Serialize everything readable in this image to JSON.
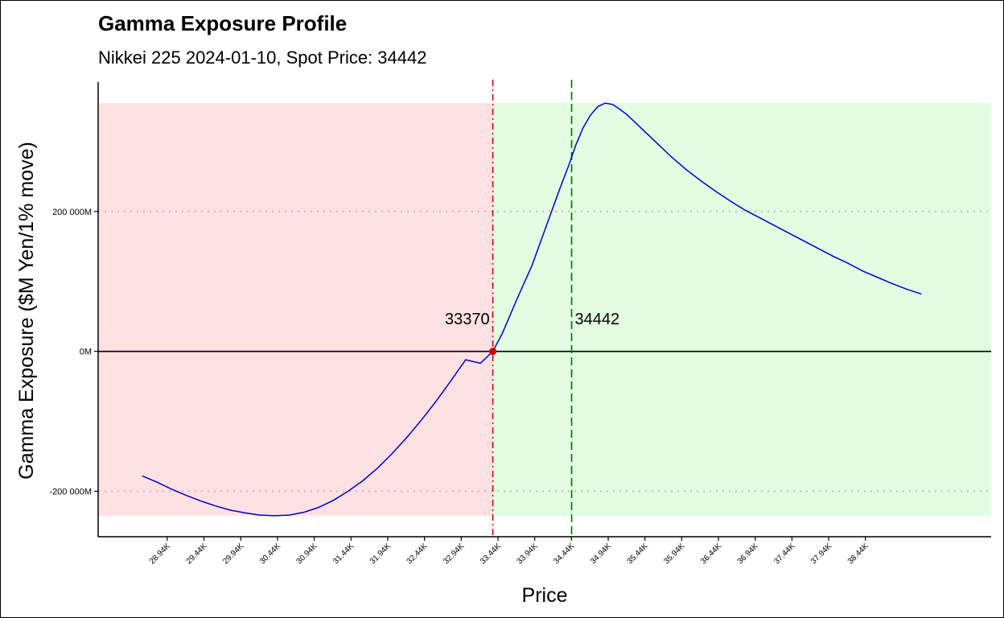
{
  "chart_data": {
    "type": "line",
    "title": "Gamma Exposure Profile",
    "subtitle": "Nikkei 225 2024-01-10, Spot Price: 34442",
    "xlabel": "Price",
    "ylabel": "Gamma Exposure ($M Yen/1% move)",
    "xlim": [
      28000,
      40150
    ],
    "ylim": [
      -265000,
      385000
    ],
    "grid": false,
    "x_ticks": [
      28940,
      29440,
      29940,
      30440,
      30940,
      31440,
      31940,
      32440,
      32940,
      33440,
      33940,
      34440,
      34940,
      35440,
      35940,
      36440,
      36940,
      37440,
      37940,
      38440
    ],
    "x_tick_labels": [
      "28.94K",
      "29.44K",
      "29.94K",
      "30.44K",
      "30.94K",
      "31.44K",
      "31.94K",
      "32.44K",
      "32.94K",
      "33.44K",
      "33.94K",
      "34.44K",
      "34.94K",
      "35.44K",
      "35.94K",
      "36.44K",
      "36.94K",
      "37.44K",
      "37.94K",
      "38.44K"
    ],
    "y_ticks": [
      -200000,
      0,
      200000
    ],
    "y_tick_labels": [
      "-200 000M",
      "0M",
      "200 000M"
    ],
    "regions": [
      {
        "x_from": 28000,
        "x_to": 33370,
        "y_from": -235000,
        "y_to": 355000,
        "color": "#ffe1e4"
      },
      {
        "x_from": 33370,
        "x_to": 40150,
        "y_from": -235000,
        "y_to": 355000,
        "color": "#e2fde2"
      }
    ],
    "reference_lines": [
      {
        "axis": "y",
        "value": 200000,
        "style": "dotted",
        "color": "#bbbbbb"
      },
      {
        "axis": "y",
        "value": -200000,
        "style": "dotted",
        "color": "#bbbbbb"
      },
      {
        "axis": "y",
        "value": 0,
        "style": "solid",
        "color": "#000000"
      },
      {
        "axis": "x",
        "value": 33370,
        "style": "dashdot",
        "color": "#e00000"
      },
      {
        "axis": "x",
        "value": 34442,
        "style": "dashed",
        "color": "#007000"
      }
    ],
    "annotations": [
      {
        "text": "33370",
        "x": 33370,
        "y": 47000,
        "anchor": "end"
      },
      {
        "text": "34442",
        "x": 34442,
        "y": 47000,
        "anchor": "start"
      }
    ],
    "marker": {
      "x": 33370,
      "y": 0,
      "color": "#cc0000"
    },
    "series": [
      {
        "color": "#0000cc",
        "x": [
          28600,
          28800,
          29000,
          29200,
          29400,
          29600,
          29800,
          30000,
          30200,
          30400,
          30600,
          30800,
          31000,
          31200,
          31400,
          31600,
          31800,
          32000,
          32200,
          32400,
          32600,
          32800,
          33000,
          33200,
          33370,
          33500,
          33700,
          33900,
          34100,
          34300,
          34400,
          34500,
          34600,
          34700,
          34800,
          34900,
          35000,
          35100,
          35200,
          35400,
          35600,
          35800,
          36000,
          36200,
          36400,
          36600,
          36800,
          37000,
          37200,
          37400,
          37600,
          37800,
          38000,
          38200,
          38400,
          38600,
          38800,
          39000,
          39200
        ],
        "y": [
          -178000,
          -187000,
          -197000,
          -206000,
          -214000,
          -221000,
          -227000,
          -231000,
          -234000,
          -235000,
          -234000,
          -230000,
          -223000,
          -213000,
          -200000,
          -185000,
          -167000,
          -146000,
          -123000,
          -98000,
          -71000,
          -42000,
          -12000,
          -17000,
          0,
          26000,
          75000,
          122000,
          180000,
          238000,
          265000,
          295000,
          320000,
          338000,
          350000,
          355000,
          353000,
          346000,
          338000,
          318000,
          298000,
          278000,
          260000,
          244000,
          229000,
          215000,
          202000,
          191000,
          180000,
          169000,
          158000,
          147000,
          136000,
          126000,
          115000,
          106000,
          97000,
          89000,
          82000
        ]
      }
    ]
  }
}
